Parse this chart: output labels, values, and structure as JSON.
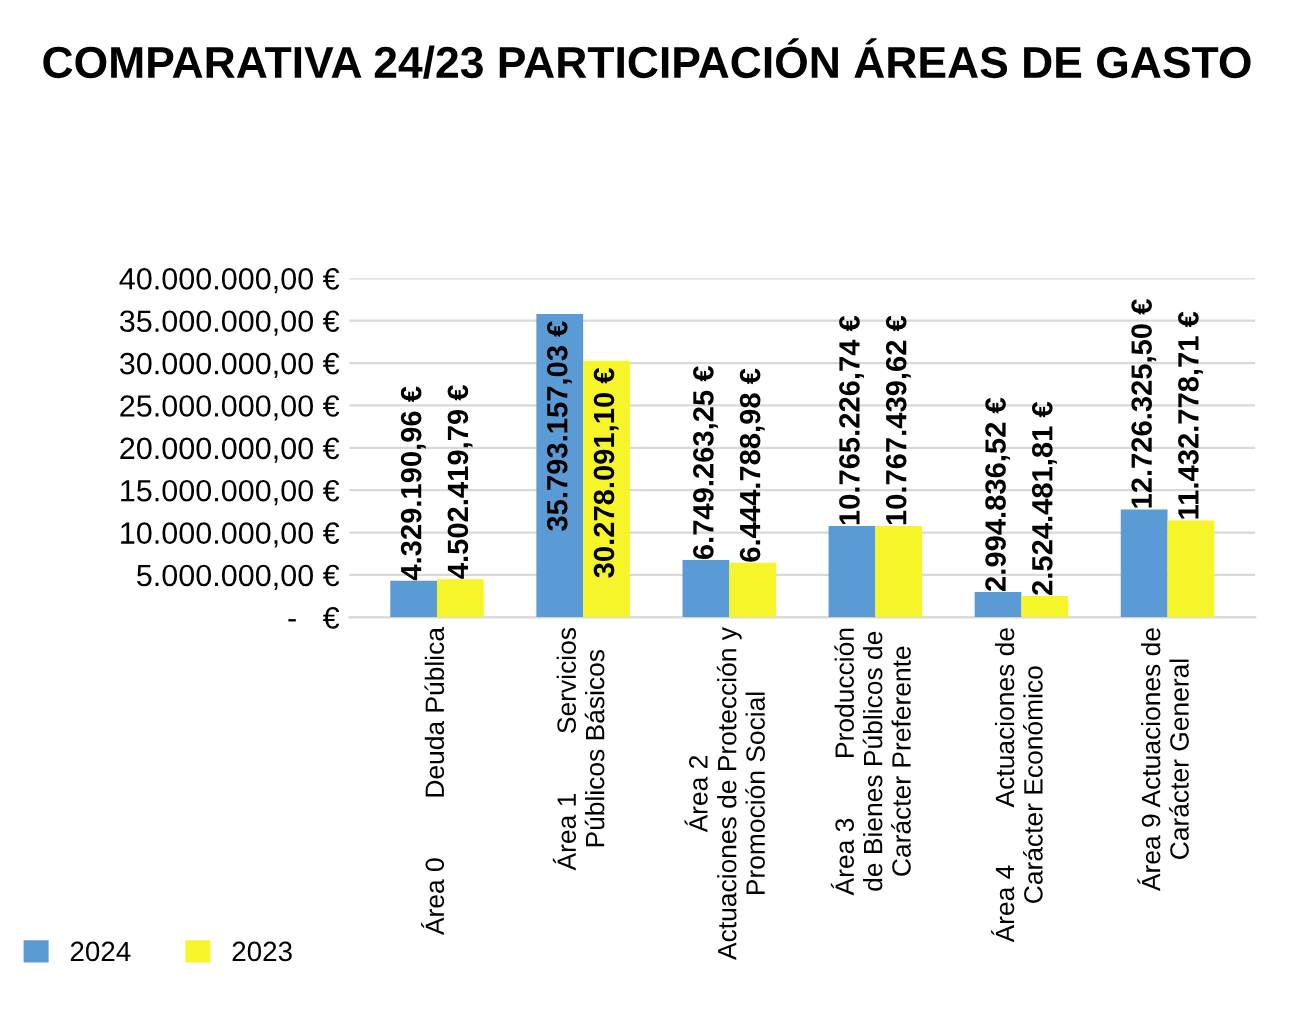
{
  "chart_data": {
    "type": "bar",
    "title": "COMPARATIVA 24/23 PARTICIPACIÓN ÁREAS DE GASTO",
    "categories": [
      "Área 0        Deuda Pública",
      "Área 1        Servicios\nPúblicos Básicos",
      "Área 2\nActuaciones de Protección y\nPromoción Social",
      "Área 3        Producción\nde Bienes Públicos de\nCarácter Preferente",
      "Área 4        Actuaciones de\nCarácter Económico",
      "Área 9 Actuaciones de\nCarácter General"
    ],
    "series": [
      {
        "name": "2024",
        "color": "#5b9bd5",
        "values": [
          4329190.96,
          35793157.03,
          6749263.25,
          10765226.74,
          2994836.52,
          12726325.5
        ],
        "value_labels": [
          "4.329.190,96 €",
          "35.793.157,03 €",
          "6.749.263,25 €",
          "10.765.226,74 €",
          "2.994.836,52 €",
          "12.726.325,50 €"
        ]
      },
      {
        "name": "2023",
        "color": "#f5f52a",
        "values": [
          4502419.79,
          30278091.1,
          6444788.98,
          10767439.62,
          2524481.81,
          11432778.71
        ],
        "value_labels": [
          "4.502.419,79 €",
          "30.278.091,10 €",
          "6.444.788,98 €",
          "10.767.439,62 €",
          "2.524.481,81 €",
          "11.432.778,71 €"
        ]
      }
    ],
    "ylim": [
      0,
      40000000
    ],
    "yticks": [
      {
        "value": 0,
        "label": "-   €"
      },
      {
        "value": 5000000,
        "label": "5.000.000,00 €"
      },
      {
        "value": 10000000,
        "label": "10.000.000,00 €"
      },
      {
        "value": 15000000,
        "label": "15.000.000,00 €"
      },
      {
        "value": 20000000,
        "label": "20.000.000,00 €"
      },
      {
        "value": 25000000,
        "label": "25.000.000,00 €"
      },
      {
        "value": 30000000,
        "label": "30.000.000,00 €"
      },
      {
        "value": 35000000,
        "label": "35.000.000,00 €"
      },
      {
        "value": 40000000,
        "label": "40.000.000,00 €"
      }
    ],
    "grid": "y",
    "legend": "bottom left"
  }
}
